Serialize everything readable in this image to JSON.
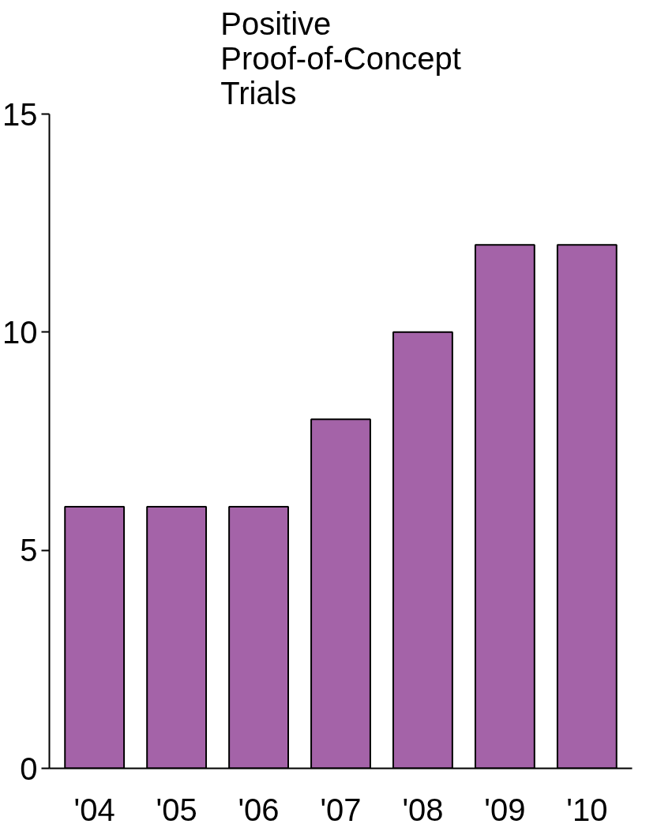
{
  "chart_data": {
    "type": "bar",
    "title": "Positive\nProof-of-Concept\nTrials",
    "categories": [
      "'04",
      "'05",
      "'06",
      "'07",
      "'08",
      "'09",
      "'10"
    ],
    "values": [
      6,
      6,
      6,
      8,
      10,
      12,
      12
    ],
    "color": "#a463a8",
    "ylim": [
      0,
      15
    ],
    "yticks": [
      0,
      5,
      10,
      15
    ],
    "grid": false
  }
}
